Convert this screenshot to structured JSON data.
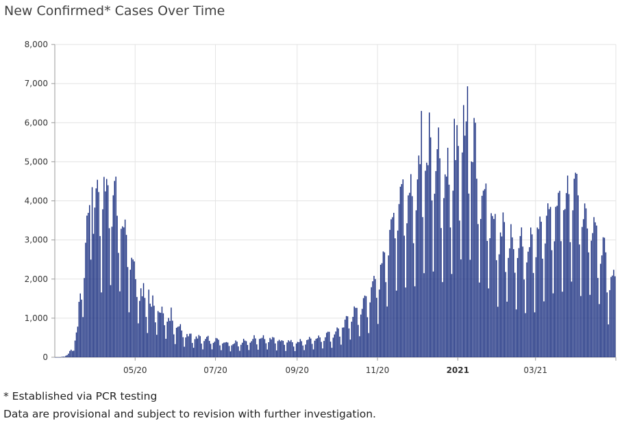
{
  "title": "New Confirmed* Cases Over Time",
  "footnotes": {
    "pcr": "* Established via PCR testing",
    "provisional": "Data are provisional and subject to revision with further investigation."
  },
  "colors": {
    "bar": "#1a2f80",
    "grid": "#e3e3e3",
    "axis": "#999999"
  },
  "chart_data": {
    "type": "bar",
    "title": "New Confirmed* Cases Over Time",
    "xlabel": "",
    "ylabel": "",
    "ylim": [
      0,
      8000
    ],
    "grid": true,
    "y_ticks": [
      0,
      1000,
      2000,
      3000,
      4000,
      5000,
      6000,
      7000,
      8000
    ],
    "y_tick_labels": [
      "0",
      "1,000",
      "2,000",
      "3,000",
      "4,000",
      "5,000",
      "6,000",
      "7,000",
      "8,000"
    ],
    "x_ticks": [
      {
        "label": "05/20",
        "date": "2020-05-01",
        "bold": false
      },
      {
        "label": "07/20",
        "date": "2020-07-01",
        "bold": false
      },
      {
        "label": "09/20",
        "date": "2020-09-01",
        "bold": false
      },
      {
        "label": "11/20",
        "date": "2020-11-01",
        "bold": false
      },
      {
        "label": "2021",
        "date": "2021-01-01",
        "bold": true
      },
      {
        "label": "03/21",
        "date": "2021-03-01",
        "bold": false
      }
    ],
    "x_start": "2020-03-01",
    "x_end": "2021-04-30",
    "daily_weekly_avg_anchors": [
      [
        "2020-03-01",
        0
      ],
      [
        "2020-03-05",
        0
      ],
      [
        "2020-03-10",
        50
      ],
      [
        "2020-03-14",
        200
      ],
      [
        "2020-03-18",
        700
      ],
      [
        "2020-03-22",
        2000
      ],
      [
        "2020-03-26",
        3100
      ],
      [
        "2020-04-02",
        3700
      ],
      [
        "2020-04-09",
        3800
      ],
      [
        "2020-04-14",
        3700
      ],
      [
        "2020-04-20",
        3100
      ],
      [
        "2020-04-26",
        2500
      ],
      [
        "2020-05-01",
        1800
      ],
      [
        "2020-05-08",
        1300
      ],
      [
        "2020-05-14",
        1200
      ],
      [
        "2020-05-20",
        1050
      ],
      [
        "2020-05-27",
        850
      ],
      [
        "2020-06-03",
        650
      ],
      [
        "2020-06-10",
        500
      ],
      [
        "2020-06-20",
        420
      ],
      [
        "2020-07-01",
        380
      ],
      [
        "2020-07-12",
        320
      ],
      [
        "2020-07-25",
        380
      ],
      [
        "2020-08-05",
        450
      ],
      [
        "2020-08-20",
        370
      ],
      [
        "2020-09-01",
        340
      ],
      [
        "2020-09-10",
        380
      ],
      [
        "2020-09-20",
        450
      ],
      [
        "2020-10-01",
        600
      ],
      [
        "2020-10-10",
        850
      ],
      [
        "2020-10-18",
        1100
      ],
      [
        "2020-10-25",
        1350
      ],
      [
        "2020-11-01",
        1750
      ],
      [
        "2020-11-08",
        2700
      ],
      [
        "2020-11-15",
        3500
      ],
      [
        "2020-11-25",
        3700
      ],
      [
        "2020-12-03",
        4200
      ],
      [
        "2020-12-10",
        4600
      ],
      [
        "2020-12-18",
        4300
      ],
      [
        "2020-12-26",
        4000
      ],
      [
        "2021-01-01",
        4500
      ],
      [
        "2021-01-06",
        5200
      ],
      [
        "2021-01-12",
        4600
      ],
      [
        "2021-01-20",
        3700
      ],
      [
        "2021-01-28",
        3000
      ],
      [
        "2021-02-05",
        2800
      ],
      [
        "2021-02-14",
        2500
      ],
      [
        "2021-02-24",
        2500
      ],
      [
        "2021-03-05",
        2800
      ],
      [
        "2021-03-15",
        3300
      ],
      [
        "2021-03-22",
        3600
      ],
      [
        "2021-03-28",
        3900
      ],
      [
        "2021-04-04",
        3300
      ],
      [
        "2021-04-12",
        3000
      ],
      [
        "2021-04-20",
        2500
      ],
      [
        "2021-04-26",
        1800
      ],
      [
        "2021-04-30",
        1700
      ]
    ],
    "weekday_factors": [
      0.48,
      0.98,
      1.12,
      1.18,
      1.26,
      1.16,
      0.82
    ],
    "peaks": [
      {
        "date": "2020-03-29",
        "value": 4350
      },
      {
        "date": "2020-04-10",
        "value": 4400
      },
      {
        "date": "2020-04-24",
        "value": 3130
      },
      {
        "date": "2020-05-11",
        "value": 1730
      },
      {
        "date": "2020-05-28",
        "value": 1270
      },
      {
        "date": "2020-10-14",
        "value": 1300
      },
      {
        "date": "2020-10-30",
        "value": 2000
      },
      {
        "date": "2020-11-20",
        "value": 4550
      },
      {
        "date": "2020-12-04",
        "value": 6300
      },
      {
        "date": "2020-12-10",
        "value": 6260
      },
      {
        "date": "2020-12-29",
        "value": 6100
      },
      {
        "date": "2021-01-05",
        "value": 6450
      },
      {
        "date": "2021-01-08",
        "value": 6930
      },
      {
        "date": "2021-01-13",
        "value": 6120
      },
      {
        "date": "2021-03-31",
        "value": 4720
      },
      {
        "date": "2021-04-28",
        "value": 2090
      }
    ]
  }
}
